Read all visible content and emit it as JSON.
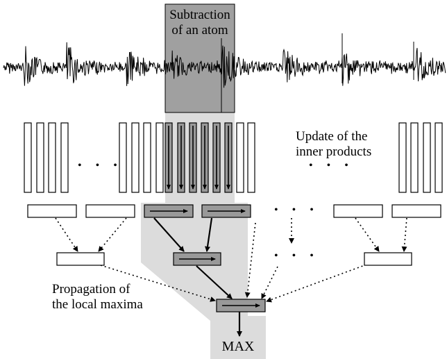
{
  "labels": {
    "subtraction_line1": "Subtraction",
    "subtraction_line2": "of an atom",
    "update_line1": "Update of the",
    "update_line2": "inner products",
    "propagation_line1": "Propagation of",
    "propagation_line2": "the local maxima",
    "max": "MAX",
    "ellipsis": "• • •"
  },
  "colors": {
    "shade_dark": "#a0a0a0",
    "shade_light": "#dcdcdc",
    "box_shaded": "#999999",
    "stroke": "#000000"
  }
}
